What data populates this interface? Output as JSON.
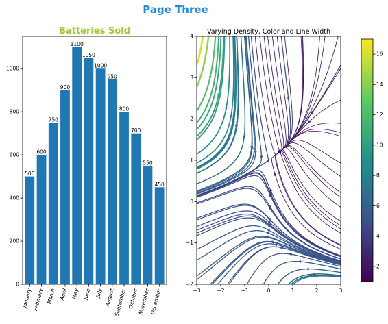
{
  "figure": {
    "suptitle": "Page Three",
    "suptitle_color": "#1f8fd8"
  },
  "chart_data": [
    {
      "type": "bar",
      "title": "Batteries Sold",
      "title_color": "#9acd32",
      "categories": [
        "January",
        "February",
        "March",
        "April",
        "May",
        "June",
        "July",
        "August",
        "September",
        "October",
        "November",
        "December"
      ],
      "values": [
        500,
        600,
        750,
        900,
        1100,
        1050,
        1000,
        950,
        800,
        700,
        550,
        450
      ],
      "bar_color": "#1f77b4",
      "xlabel": "",
      "ylabel": "",
      "ylim": [
        0,
        1150
      ],
      "yticks": [
        0,
        200,
        400,
        600,
        800,
        1000
      ],
      "xtick_rotation": 75,
      "data_labels": true,
      "grid": false
    },
    {
      "type": "streamplot",
      "title": "Varying Density, Color and Line Width",
      "xlim": [
        -3,
        3
      ],
      "ylim": [
        -2,
        4
      ],
      "xticks": [
        -3,
        -2,
        -1,
        0,
        1,
        2,
        3
      ],
      "yticks": [
        -2,
        -1,
        0,
        1,
        2,
        3,
        4
      ],
      "field": "U = -1 - x^2 + y ; V = 1 + x - y^2",
      "colormap": "viridis",
      "colormap_stops": [
        "#440154",
        "#3b528b",
        "#21918c",
        "#5ec962",
        "#fde725"
      ],
      "colorbar": {
        "min": 1,
        "max": 17,
        "ticks": [
          2,
          4,
          6,
          8,
          10,
          12,
          14,
          16
        ]
      },
      "grid": false
    }
  ]
}
